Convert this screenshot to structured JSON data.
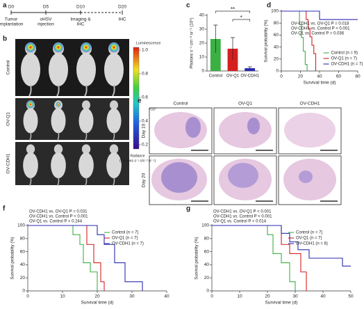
{
  "timeline": {
    "panel": "a",
    "steps": [
      {
        "day": "D0",
        "lines": [
          "Tumor",
          "implantation"
        ]
      },
      {
        "day": "D5",
        "lines": [
          "oHSV",
          "injection"
        ]
      },
      {
        "day": "D10",
        "lines": [
          "Imaging &",
          "IHC"
        ]
      },
      {
        "day": "D20",
        "lines": [
          "IHC"
        ]
      }
    ]
  },
  "imaging": {
    "panel": "b",
    "rows": [
      "Control",
      "OV-Q1",
      "OV-CDH1"
    ],
    "colorbar_title": "Luminescence",
    "colorbar_ticks": [
      "1.0",
      "0.8",
      "0.6",
      "0.4",
      "0.2"
    ],
    "colorbar_scale": "×10⁷",
    "colorbar_caption": [
      "Radiance",
      "(Photons s⁻¹ cm⁻² sr⁻¹)"
    ]
  },
  "histology": {
    "panel": "e",
    "columns": [
      "Control",
      "OV-Q1",
      "OV-CDH1"
    ],
    "rows": [
      "Day 10",
      "Day 20"
    ]
  },
  "chart_data": [
    {
      "type": "bar",
      "panel": "c",
      "ylabel": "Photons s⁻¹ cm⁻² sr⁻¹ (10⁵)",
      "categories": [
        "Control",
        "OV-Q1",
        "OV-CDH1"
      ],
      "values": [
        23,
        16,
        2
      ],
      "errors": [
        10,
        8,
        1
      ],
      "colors": [
        "#3cb043",
        "#d62020",
        "#2b2bb0"
      ],
      "ylim": [
        0,
        40
      ],
      "yticks": [
        0,
        10,
        20,
        30,
        40
      ],
      "significance": [
        "**",
        "*"
      ]
    },
    {
      "type": "step",
      "panel": "d",
      "xlabel": "Survival time (d)",
      "ylabel": "Survival probability (%)",
      "xlim": [
        0,
        80
      ],
      "xticks": [
        0,
        20,
        40,
        60,
        80
      ],
      "ylim": [
        0,
        100
      ],
      "yticks": [
        0,
        20,
        40,
        60,
        80,
        100
      ],
      "legend": "right",
      "annotations": [
        "OV-CDH1 vs. OV-Q1  P = 0.018",
        "OV-CDH1 vs. Control  P < 0.001",
        "OV-Q1 vs. Control  P = 0.036"
      ],
      "series": [
        {
          "name": "Control (n = 9)",
          "color": "#3cb043",
          "x": [
            0,
            19,
            21,
            23,
            25,
            27
          ],
          "values": [
            100,
            78,
            56,
            33,
            11,
            0
          ]
        },
        {
          "name": "OV-Q1 (n = 7)",
          "color": "#d62020",
          "x": [
            0,
            26,
            28,
            30,
            32,
            34,
            36
          ],
          "values": [
            100,
            86,
            71,
            57,
            43,
            29,
            0
          ]
        },
        {
          "name": "OV-CDH1 (n = 7)",
          "color": "#2b2bb0",
          "x": [
            0,
            40,
            80
          ],
          "values": [
            100,
            86,
            86
          ]
        }
      ]
    },
    {
      "type": "step",
      "panel": "f",
      "xlabel": "Survival time (d)",
      "ylabel": "Survival probability (%)",
      "xlim": [
        0,
        40
      ],
      "xticks": [
        0,
        10,
        20,
        30,
        40
      ],
      "ylim": [
        0,
        100
      ],
      "yticks": [
        0,
        20,
        40,
        60,
        80,
        100
      ],
      "legend": "right",
      "annotations": [
        "OV-CDH1 vs. OV-Q1  P = 0.031",
        "OV-CDH1 vs. Control  P < 0.001",
        "OV-Q1 vs. Control  P = 0.244"
      ],
      "series": [
        {
          "name": "Control (n = 7)",
          "color": "#3cb043",
          "x": [
            0,
            13,
            15,
            16,
            18,
            20
          ],
          "values": [
            100,
            86,
            71,
            43,
            29,
            0
          ]
        },
        {
          "name": "OV-Q1 (n = 7)",
          "color": "#d62020",
          "x": [
            0,
            17,
            19,
            21,
            22
          ],
          "values": [
            100,
            71,
            43,
            14,
            0
          ]
        },
        {
          "name": "OV-CDH1 (n = 7)",
          "color": "#2b2bb0",
          "x": [
            0,
            20,
            22,
            25,
            28,
            33
          ],
          "values": [
            100,
            86,
            71,
            43,
            14,
            0
          ]
        }
      ]
    },
    {
      "type": "step",
      "panel": "g",
      "xlabel": "Survival time (d)",
      "ylabel": "Survival probability (%)",
      "xlim": [
        0,
        50
      ],
      "xticks": [
        0,
        10,
        20,
        30,
        40,
        50
      ],
      "ylim": [
        0,
        100
      ],
      "yticks": [
        0,
        20,
        40,
        60,
        80,
        100
      ],
      "legend": "right",
      "annotations": [
        "OV-CDH1 vs. OV-Q1  P < 0.001",
        "OV-CDH1 vs. Control  P < 0.001",
        "OV-Q1 vs. Control  P = 0.014"
      ],
      "series": [
        {
          "name": "Control (n = 7)",
          "color": "#3cb043",
          "x": [
            0,
            20,
            22,
            25,
            28,
            30
          ],
          "values": [
            100,
            86,
            57,
            43,
            14,
            0
          ]
        },
        {
          "name": "OV-Q1 (n = 7)",
          "color": "#d62020",
          "x": [
            0,
            25,
            28,
            32,
            34
          ],
          "values": [
            100,
            71,
            57,
            29,
            0
          ]
        },
        {
          "name": "OV-CDH1 (n = 8)",
          "color": "#2b2bb0",
          "x": [
            0,
            25,
            28,
            31,
            35,
            40,
            47,
            50
          ],
          "values": [
            100,
            88,
            75,
            63,
            50,
            50,
            38,
            38
          ]
        }
      ]
    }
  ]
}
